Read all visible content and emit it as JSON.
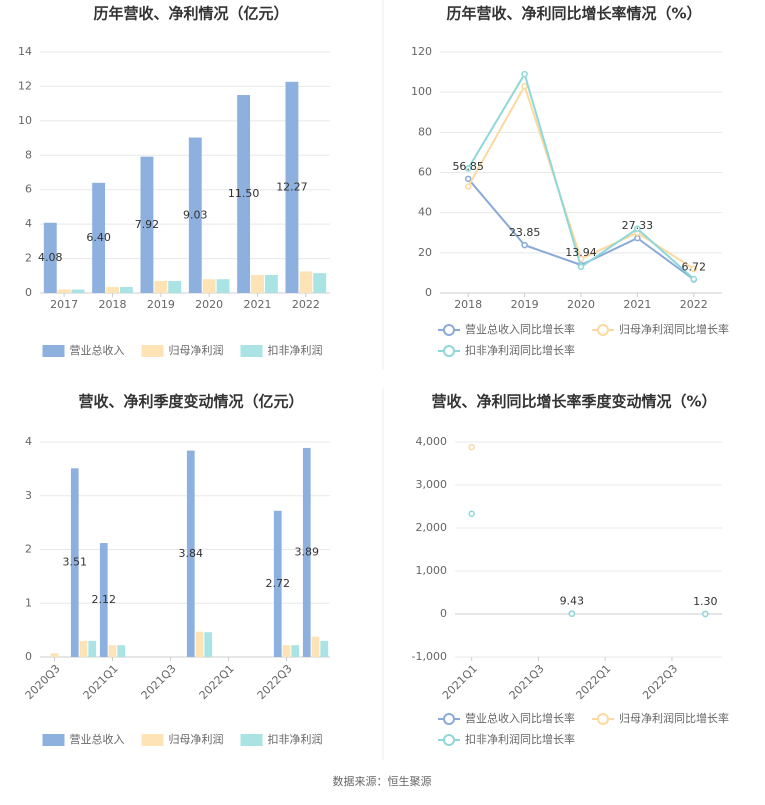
{
  "chart_data": [
    {
      "type": "bar",
      "title": "历年营收、净利情况（亿元）",
      "categories": [
        "2017",
        "2018",
        "2019",
        "2020",
        "2021",
        "2022"
      ],
      "series": [
        {
          "name": "营业总收入",
          "color": "#8eb0de",
          "values": [
            4.08,
            6.4,
            7.92,
            9.03,
            11.5,
            12.27
          ],
          "value_labels": [
            "4.08",
            "6.40",
            "7.92",
            "9.03",
            "11.50",
            "12.27"
          ]
        },
        {
          "name": "归母净利润",
          "color": "#fde3b5",
          "values": [
            0.2,
            0.35,
            0.7,
            0.8,
            1.05,
            1.25
          ]
        },
        {
          "name": "扣非净利润",
          "color": "#a9e3e3",
          "values": [
            0.2,
            0.35,
            0.7,
            0.8,
            1.05,
            1.15
          ]
        }
      ],
      "ylim": [
        0,
        14
      ],
      "yticks": [
        0,
        2,
        4,
        6,
        8,
        10,
        12,
        14
      ],
      "grid": true,
      "legend": "bottom"
    },
    {
      "type": "line",
      "title": "历年营收、净利同比增长率情况（%）",
      "categories": [
        "2018",
        "2019",
        "2020",
        "2021",
        "2022"
      ],
      "series": [
        {
          "name": "营业总收入同比增长率",
          "color": "#8aaad8",
          "values": [
            56.85,
            23.85,
            13.94,
            27.33,
            6.72
          ],
          "data_labels": true
        },
        {
          "name": "归母净利润同比增长率",
          "color": "#fbd9a0",
          "values": [
            53,
            103,
            17,
            30,
            12
          ]
        },
        {
          "name": "扣非净利润同比增长率",
          "color": "#8fd8d8",
          "values": [
            62,
            109,
            13,
            32,
            7
          ]
        }
      ],
      "ylim": [
        0,
        120
      ],
      "yticks": [
        0,
        20,
        40,
        60,
        80,
        100,
        120
      ],
      "grid": true,
      "legend": "bottom"
    },
    {
      "type": "bar",
      "title": "营收、净利季度变动情况（亿元）",
      "categories": [
        "2020Q3",
        null,
        "2021Q1",
        null,
        "2021Q3",
        null,
        "2022Q1",
        null,
        "2022Q3",
        null
      ],
      "series": [
        {
          "name": "营业总收入",
          "color": "#8eb0de",
          "values": [
            null,
            3.51,
            2.12,
            null,
            null,
            3.84,
            null,
            null,
            2.72,
            3.89
          ],
          "data_labels": true
        },
        {
          "name": "归母净利润",
          "color": "#fde3b5",
          "values": [
            0.07,
            0.3,
            0.22,
            null,
            null,
            0.47,
            null,
            null,
            0.22,
            0.38
          ]
        },
        {
          "name": "扣非净利润",
          "color": "#a9e3e3",
          "values": [
            null,
            0.3,
            0.22,
            null,
            null,
            0.46,
            null,
            null,
            0.22,
            0.3
          ]
        }
      ],
      "ylim": [
        0,
        4
      ],
      "yticks": [
        0,
        1,
        2,
        3,
        4
      ],
      "grid": true,
      "legend": "bottom"
    },
    {
      "type": "line",
      "title": "营收、净利同比增长率季度变动情况（%）",
      "categories": [
        "2021Q1",
        null,
        "2021Q3",
        null,
        "2022Q1",
        null,
        "2022Q3",
        null
      ],
      "series": [
        {
          "name": "营业总收入同比增长率",
          "color": "#8aaad8",
          "values": [
            null,
            null,
            null,
            9.43,
            null,
            null,
            null,
            1.3
          ],
          "value_labels": [
            null,
            null,
            null,
            "9.43",
            null,
            null,
            null,
            "1.30"
          ]
        },
        {
          "name": "归母净利润同比增长率",
          "color": "#fbd9a0",
          "values": [
            3880,
            null,
            null,
            null,
            null,
            null,
            null,
            null
          ]
        },
        {
          "name": "扣非净利润同比增长率",
          "color": "#8fd8d8",
          "values": [
            2330,
            null,
            null,
            5,
            null,
            null,
            null,
            1
          ]
        }
      ],
      "ylim": [
        -1000,
        4000
      ],
      "yticks": [
        {
          "value": -1000,
          "label": "-1,000"
        },
        0,
        {
          "value": 1000,
          "label": "1,000"
        },
        {
          "value": 2000,
          "label": "2,000"
        },
        {
          "value": 3000,
          "label": "3,000"
        },
        {
          "value": 4000,
          "label": "4,000"
        }
      ],
      "grid": true,
      "legend": "bottom"
    }
  ],
  "source": "数据来源：恒生聚源"
}
